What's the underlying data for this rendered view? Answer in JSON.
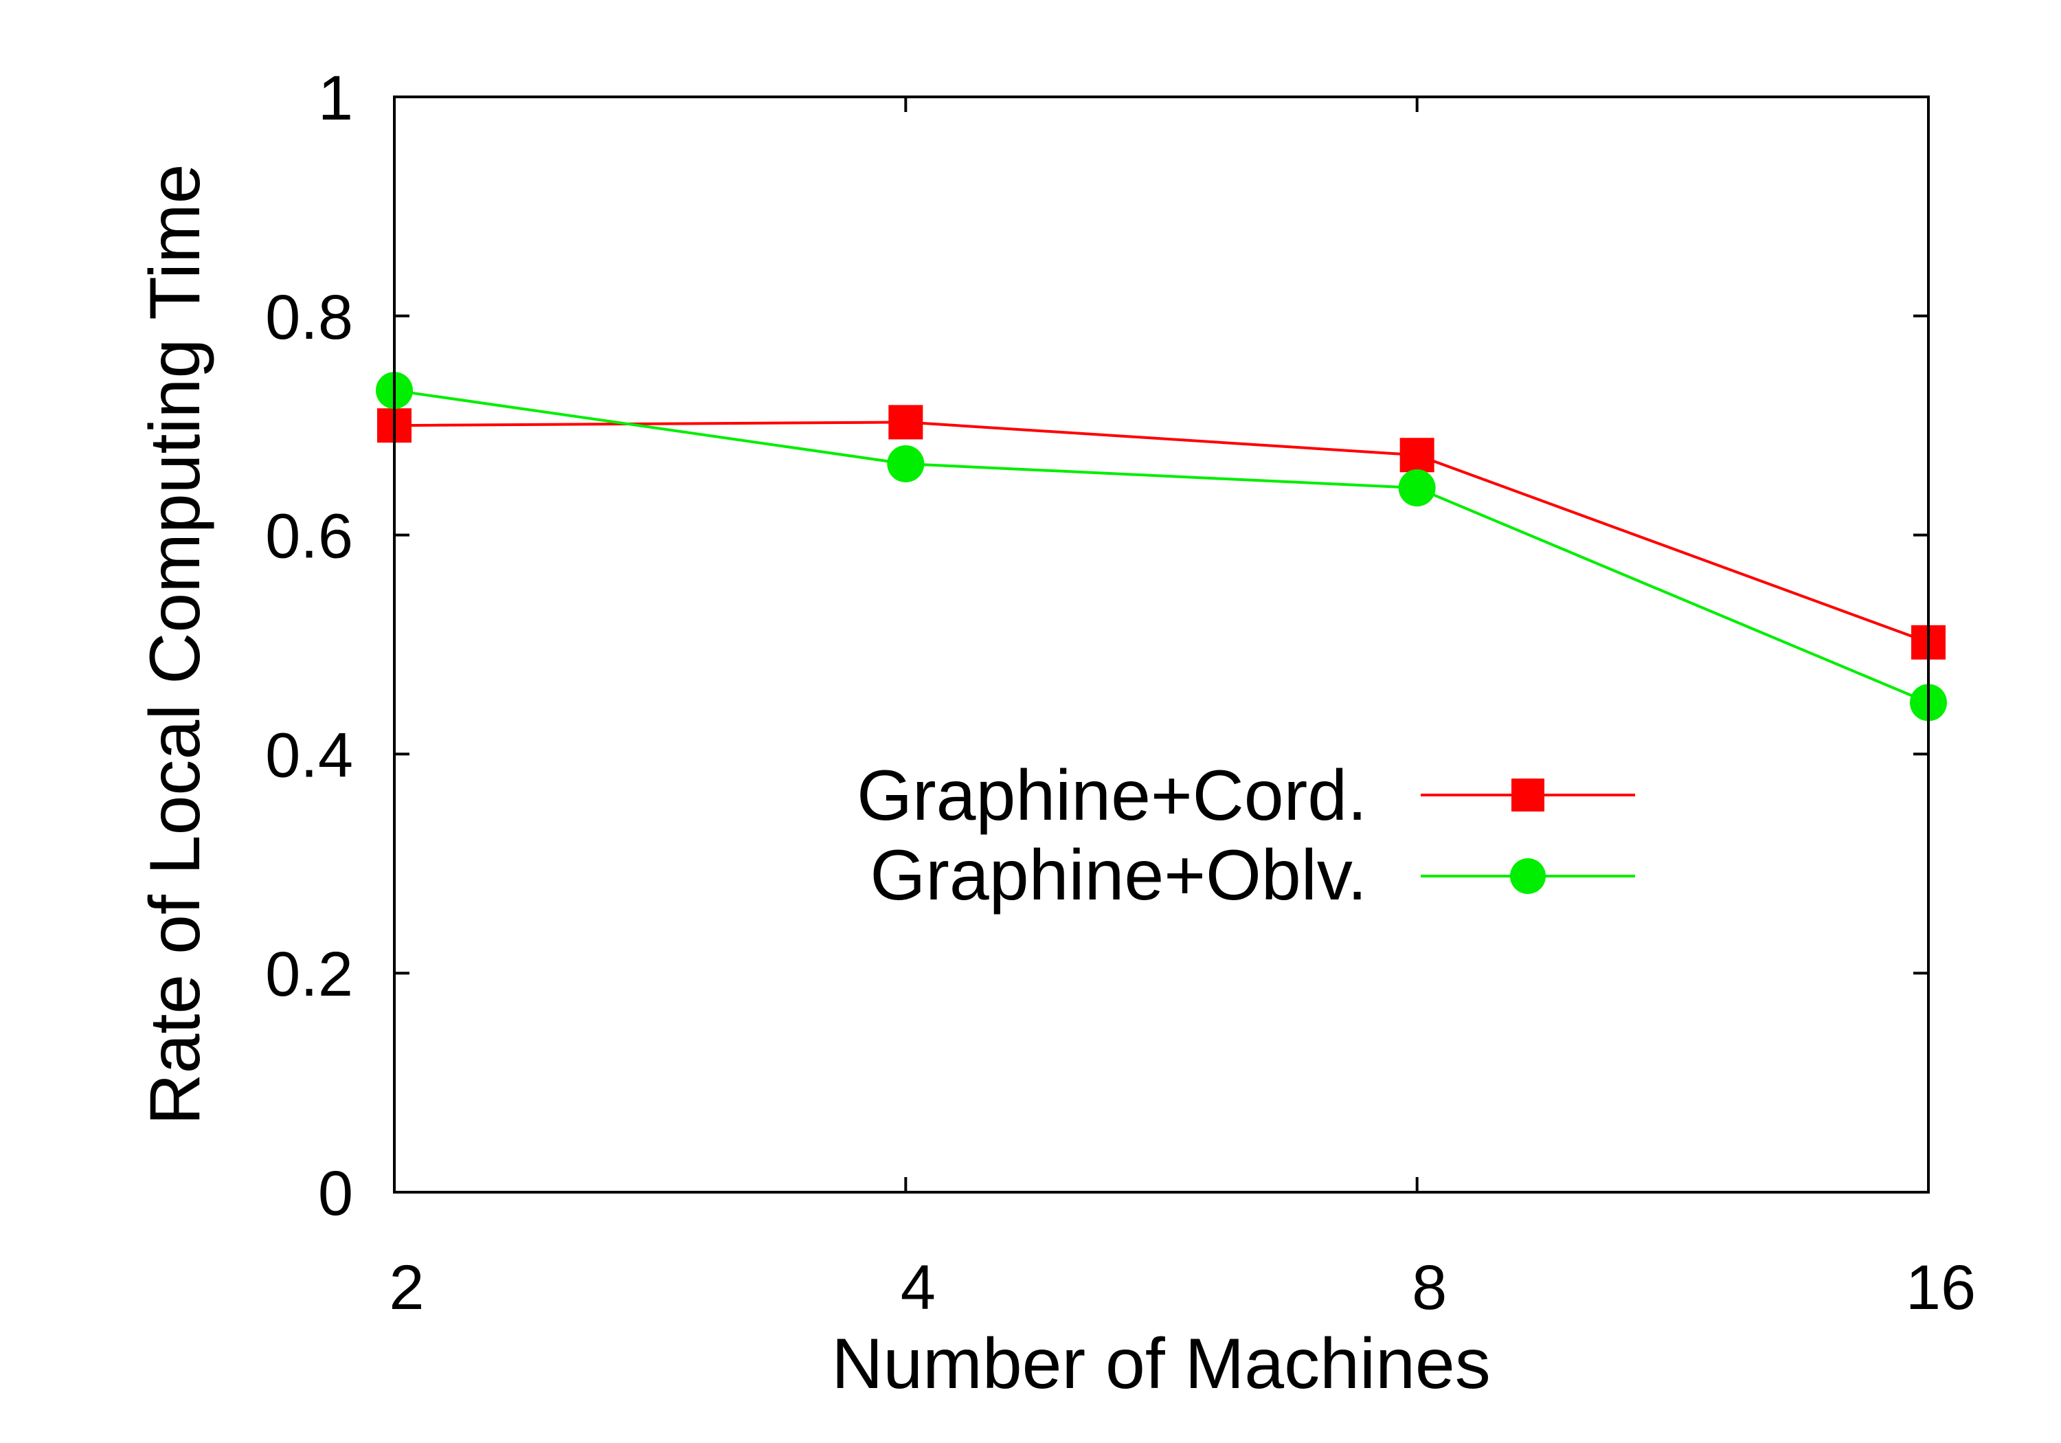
{
  "chart_data": {
    "type": "line",
    "title": "",
    "xlabel": "Number of Machines",
    "ylabel": "Rate of Local Computing Time",
    "x_scale": "categorical",
    "categories": [
      "2",
      "4",
      "8",
      "16"
    ],
    "y_ticks": [
      "0",
      "0.2",
      "0.4",
      "0.6",
      "0.8",
      "1"
    ],
    "ylim": [
      0,
      1
    ],
    "grid": false,
    "legend_position": "center-right",
    "series": [
      {
        "name": "Graphine+Cord.",
        "color": "#ff0000",
        "marker": "square",
        "values": [
          0.7,
          0.703,
          0.673,
          0.502
        ]
      },
      {
        "name": "Graphine+Oblv.",
        "color": "#00ee00",
        "marker": "circle",
        "values": [
          0.732,
          0.665,
          0.643,
          0.447
        ]
      }
    ]
  }
}
